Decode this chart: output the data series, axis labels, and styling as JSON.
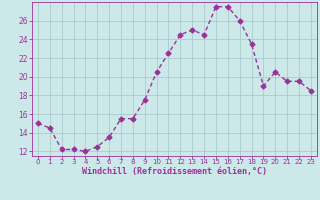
{
  "x": [
    0,
    1,
    2,
    3,
    4,
    5,
    6,
    7,
    8,
    9,
    10,
    11,
    12,
    13,
    14,
    15,
    16,
    17,
    18,
    19,
    20,
    21,
    22,
    23
  ],
  "y": [
    15.0,
    14.5,
    12.2,
    12.2,
    12.0,
    12.5,
    13.5,
    15.5,
    15.5,
    17.5,
    20.5,
    22.5,
    24.5,
    25.0,
    24.5,
    27.5,
    27.5,
    26.0,
    23.5,
    19.0,
    20.5,
    19.5,
    19.5,
    18.5
  ],
  "line_color": "#993399",
  "marker": "D",
  "marker_size": 2.5,
  "line_width": 1.0,
  "bg_color": "#cce8e8",
  "grid_color": "#aacccc",
  "xlabel": "Windchill (Refroidissement éolien,°C)",
  "xlabel_color": "#993399",
  "tick_color": "#993399",
  "ylim": [
    11.5,
    28.0
  ],
  "yticks": [
    12,
    14,
    16,
    18,
    20,
    22,
    24,
    26
  ],
  "xtick_labels": [
    "0",
    "1",
    "2",
    "3",
    "4",
    "5",
    "6",
    "7",
    "8",
    "9",
    "10",
    "11",
    "12",
    "13",
    "14",
    "15",
    "16",
    "17",
    "18",
    "19",
    "20",
    "21",
    "22",
    "23"
  ]
}
